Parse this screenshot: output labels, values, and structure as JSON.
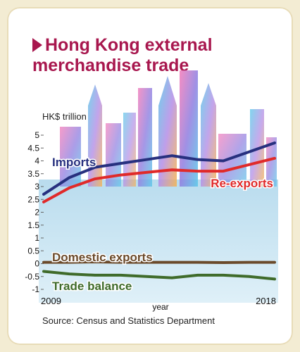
{
  "title_line1": "Hong Kong external",
  "title_line2": "merchandise trade",
  "source": "Source: Census and Statistics Department",
  "colors": {
    "imports": "#27307f",
    "re_exports": "#e02a2a",
    "domestic_exports": "#6b4a2a",
    "trade_balance": "#3f6b2a",
    "title": "#a8174e"
  },
  "chart_data": {
    "type": "line",
    "ylabel": "HK$ trillion",
    "xlabel": "year",
    "ylim": [
      -1,
      5
    ],
    "yticks": [
      "5",
      "4.5",
      "4",
      "3.5",
      "3",
      "2.5",
      "2",
      "1.5",
      "1",
      "0.5",
      "0",
      "-0.5",
      "-1"
    ],
    "xtick_labels": [
      "2009",
      "2018"
    ],
    "x": [
      2009,
      2010,
      2011,
      2012,
      2013,
      2014,
      2015,
      2016,
      2017,
      2018
    ],
    "series": [
      {
        "name": "Imports",
        "values": [
          2.7,
          3.35,
          3.75,
          3.9,
          4.05,
          4.2,
          4.05,
          4.0,
          4.35,
          4.7
        ]
      },
      {
        "name": "Re-exports",
        "values": [
          2.4,
          2.95,
          3.3,
          3.45,
          3.55,
          3.65,
          3.6,
          3.6,
          3.85,
          4.1
        ]
      },
      {
        "name": "Domestic exports",
        "values": [
          0.05,
          0.05,
          0.07,
          0.05,
          0.05,
          0.05,
          0.05,
          0.04,
          0.05,
          0.05
        ]
      },
      {
        "name": "Trade balance",
        "values": [
          -0.3,
          -0.4,
          -0.45,
          -0.45,
          -0.5,
          -0.55,
          -0.45,
          -0.45,
          -0.5,
          -0.6
        ]
      }
    ]
  }
}
